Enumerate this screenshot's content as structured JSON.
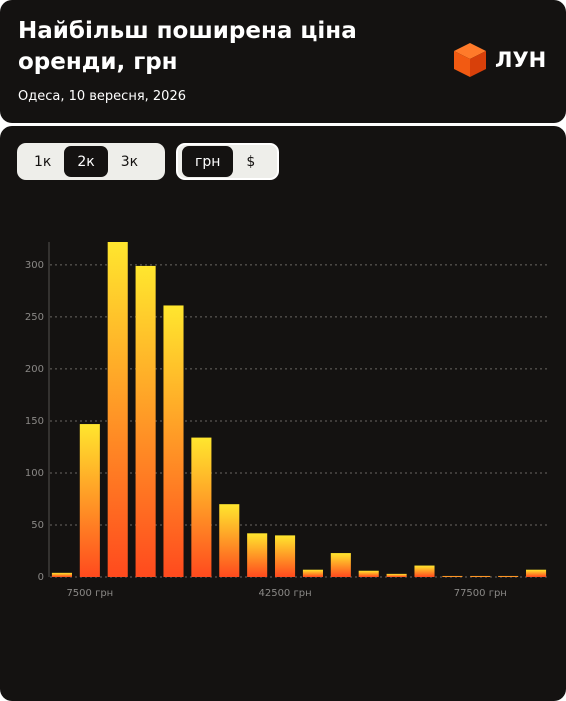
{
  "header": {
    "title": "Найбільш поширена ціна оренди, грн",
    "subtitle": "Одеса, 10 вересня, 2026",
    "logo": "ЛУН"
  },
  "controls": {
    "rooms": [
      "1к",
      "2к",
      "3к"
    ],
    "currency": [
      "грн",
      "$"
    ]
  },
  "chart_data": {
    "type": "bar",
    "categories": [
      null,
      "7500 грн",
      null,
      null,
      null,
      null,
      null,
      null,
      "42500 грн",
      null,
      null,
      null,
      null,
      null,
      null,
      "77500 грн",
      null,
      null
    ],
    "values": [
      4,
      147,
      322,
      299,
      261,
      134,
      70,
      42,
      40,
      7,
      23,
      6,
      3,
      11,
      1,
      1,
      1,
      7
    ],
    "ylim": [
      0,
      322
    ],
    "yticks": [
      0,
      50,
      100,
      150,
      200,
      250,
      300
    ],
    "grid": true
  }
}
